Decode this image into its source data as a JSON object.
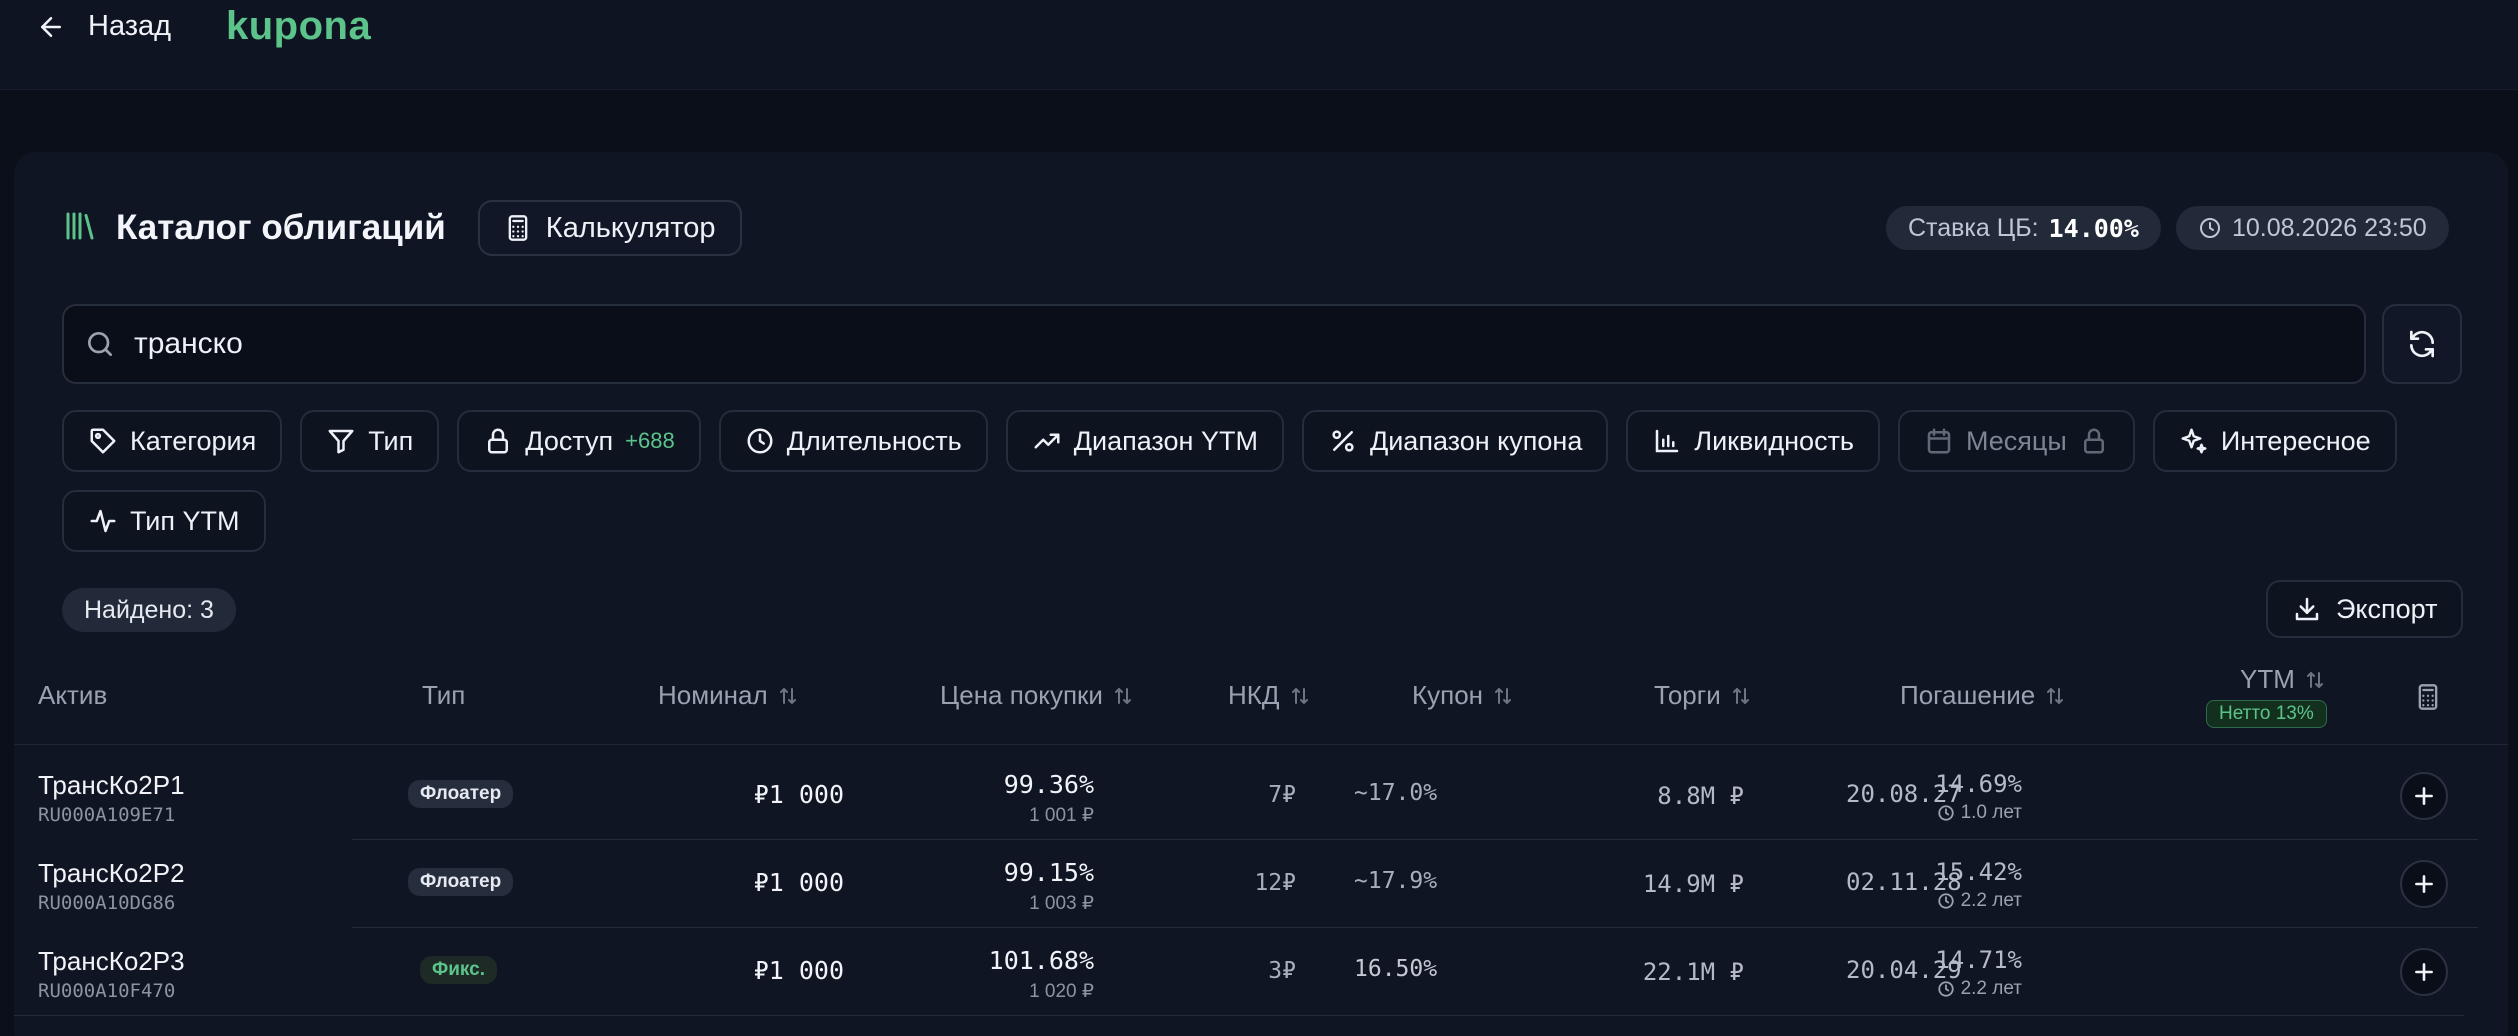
{
  "header": {
    "back_label": "Назад",
    "logo": "kupona"
  },
  "catalog": {
    "title": "Каталог облигаций",
    "calculator_label": "Калькулятор",
    "rate_label": "Ставка ЦБ:",
    "rate_value": "14.00%",
    "datetime": "10.08.2026 23:50"
  },
  "search": {
    "value": "транско"
  },
  "filters": [
    {
      "label": "Категория",
      "icon": "tag-icon"
    },
    {
      "label": "Тип",
      "icon": "filter-icon"
    },
    {
      "label": "Доступ",
      "icon": "lock-icon",
      "count": "+688"
    },
    {
      "label": "Длительность",
      "icon": "clock-icon"
    },
    {
      "label": "Диапазон YTM",
      "icon": "trending-up-icon"
    },
    {
      "label": "Диапазон купона",
      "icon": "percent-icon"
    },
    {
      "label": "Ликвидность",
      "icon": "bar-chart-icon"
    },
    {
      "label": "Месяцы",
      "icon": "calendar-icon",
      "disabled": true
    },
    {
      "label": "Интересное",
      "icon": "sparkles-icon"
    },
    {
      "label": "Тип YTM",
      "icon": "activity-icon"
    }
  ],
  "found_label": "Найдено: 3",
  "export_label": "Экспорт",
  "table": {
    "columns": {
      "asset": "Актив",
      "type": "Тип",
      "nominal": "Номинал",
      "price": "Цена покупки",
      "nkd": "НКД",
      "coupon": "Купон",
      "volume": "Торги",
      "maturity": "Погашение",
      "ytm": "YTM",
      "ytm_badge": "Нетто 13%"
    },
    "rows": [
      {
        "name": "ТрансКо2Р1",
        "isin": "RU000A109E71",
        "type": "Флоатер",
        "nominal": "₽1 000",
        "price": "99.36%",
        "price_rub": "1 001 ₽",
        "nkd": "7₽",
        "coupon": "~17.0%",
        "volume": "8.8M ₽",
        "maturity": "20.08.27",
        "ytm": "14.69%",
        "duration": "1.0 лет"
      },
      {
        "name": "ТрансКо2Р2",
        "isin": "RU000A10DG86",
        "type": "Флоатер",
        "nominal": "₽1 000",
        "price": "99.15%",
        "price_rub": "1 003 ₽",
        "nkd": "12₽",
        "coupon": "~17.9%",
        "volume": "14.9M ₽",
        "maturity": "02.11.28",
        "ytm": "15.42%",
        "duration": "2.2 лет"
      },
      {
        "name": "ТрансКо2Р3",
        "isin": "RU000A10F470",
        "type": "Фикс.",
        "nominal": "₽1 000",
        "price": "101.68%",
        "price_rub": "1 020 ₽",
        "nkd": "3₽",
        "coupon": "16.50%",
        "volume": "22.1M ₽",
        "maturity": "20.04.29",
        "ytm": "14.71%",
        "duration": "2.2 лет"
      }
    ]
  },
  "colors": {
    "accent": "#5cc48a",
    "background": "#0b0f1a",
    "panel": "#101523"
  }
}
